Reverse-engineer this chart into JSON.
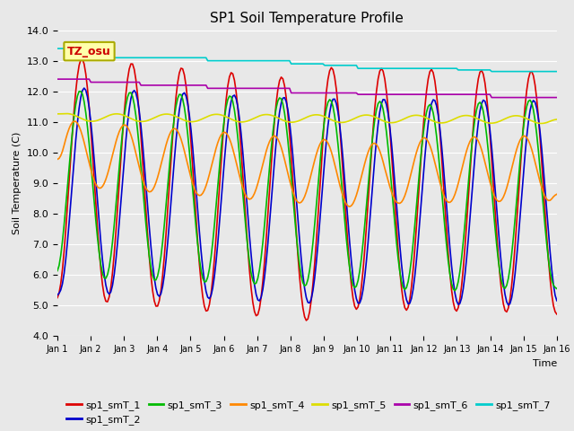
{
  "title": "SP1 Soil Temperature Profile",
  "xlabel": "Time",
  "ylabel": "Soil Temperature (C)",
  "ylim": [
    4.0,
    14.0
  ],
  "yticks": [
    4.0,
    5.0,
    6.0,
    7.0,
    8.0,
    9.0,
    10.0,
    11.0,
    12.0,
    13.0,
    14.0
  ],
  "xtick_labels": [
    "Jan 1",
    "Jan 2",
    "Jan 3",
    "Jan 4",
    "Jan 5",
    "Jan 6",
    "Jan 7",
    "Jan 8",
    "Jan 9",
    "Jan 10",
    "Jan 11",
    "Jan 12",
    "Jan 13",
    "Jan 14",
    "Jan 15",
    "Jan 16"
  ],
  "n_points": 300,
  "background_color": "#e8e8e8",
  "plot_bg_color": "#e8e8e8",
  "annotation_text": "TZ_osu",
  "series": {
    "sp1_smT_1": {
      "color": "#dd0000",
      "linewidth": 1.2
    },
    "sp1_smT_2": {
      "color": "#0000cc",
      "linewidth": 1.2
    },
    "sp1_smT_3": {
      "color": "#00bb00",
      "linewidth": 1.2
    },
    "sp1_smT_4": {
      "color": "#ff8800",
      "linewidth": 1.2
    },
    "sp1_smT_5": {
      "color": "#dddd00",
      "linewidth": 1.2
    },
    "sp1_smT_6": {
      "color": "#aa00aa",
      "linewidth": 1.2
    },
    "sp1_smT_7": {
      "color": "#00cccc",
      "linewidth": 1.2
    }
  },
  "legend_order": [
    "sp1_smT_1",
    "sp1_smT_2",
    "sp1_smT_3",
    "sp1_smT_4",
    "sp1_smT_5",
    "sp1_smT_6",
    "sp1_smT_7"
  ]
}
